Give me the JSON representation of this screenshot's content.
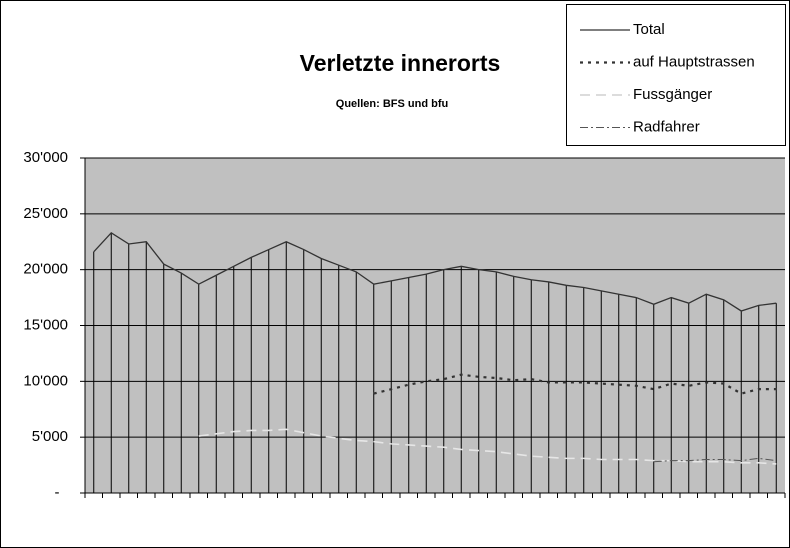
{
  "chart_data": {
    "type": "line",
    "title": "Verletzte innerorts",
    "subtitle": "Quellen: BFS und bfu",
    "categories": [
      null,
      null,
      null,
      null,
      null,
      null,
      null,
      null,
      null,
      null,
      null,
      null,
      null,
      null,
      null,
      null,
      null,
      null,
      null,
      null,
      null,
      null,
      null,
      null,
      null,
      null,
      null,
      null,
      null,
      null,
      null,
      null,
      null,
      null,
      null,
      null,
      null,
      null,
      null,
      null
    ],
    "series": [
      {
        "name": "Total",
        "color": "#333333",
        "style": "solid",
        "values": [
          21600,
          23300,
          22300,
          22500,
          20500,
          19700,
          18700,
          19500,
          20300,
          21100,
          21800,
          22500,
          21800,
          21000,
          20400,
          19800,
          18700,
          19000,
          19300,
          19600,
          20000,
          20300,
          20000,
          19800,
          19400,
          19100,
          18900,
          18600,
          18400,
          18100,
          17800,
          17500,
          16900,
          17500,
          17000,
          17800,
          17300,
          16300,
          16800,
          17000
        ]
      },
      {
        "name": "auf Hauptstrassen",
        "color": "#333333",
        "style": "dotted",
        "values": [
          null,
          null,
          null,
          null,
          null,
          null,
          null,
          null,
          null,
          null,
          null,
          null,
          null,
          null,
          null,
          null,
          8900,
          9300,
          9700,
          10000,
          10200,
          10600,
          10400,
          10300,
          10100,
          10200,
          9900,
          9900,
          9900,
          9800,
          9700,
          9600,
          9300,
          9800,
          9600,
          9900,
          9800,
          8900,
          9300,
          9300
        ]
      },
      {
        "name": "Fussgänger",
        "color": "#e6e6e6",
        "style": "dashed",
        "values": [
          null,
          null,
          null,
          null,
          null,
          null,
          5100,
          5300,
          5500,
          5600,
          5600,
          5700,
          5400,
          5100,
          4900,
          4700,
          4600,
          4400,
          4300,
          4200,
          4100,
          3900,
          3800,
          3700,
          3500,
          3300,
          3200,
          3100,
          3100,
          3000,
          3000,
          3000,
          2900,
          2900,
          2800,
          2800,
          2800,
          2700,
          2700,
          2600
        ]
      },
      {
        "name": "Radfahrer",
        "color": "#555555",
        "style": "dashdot",
        "values": [
          null,
          null,
          null,
          null,
          null,
          null,
          null,
          null,
          null,
          null,
          null,
          null,
          null,
          null,
          null,
          null,
          null,
          null,
          null,
          null,
          null,
          null,
          null,
          null,
          null,
          null,
          null,
          null,
          null,
          null,
          null,
          null,
          2800,
          2900,
          2900,
          3000,
          3000,
          2900,
          3100,
          2900
        ]
      }
    ],
    "ylim": [
      0,
      30000
    ],
    "yticks": [
      {
        "value": 0,
        "label": "-"
      },
      {
        "value": 5000,
        "label": "5'000"
      },
      {
        "value": 10000,
        "label": "10'000"
      },
      {
        "value": 15000,
        "label": "15'000"
      },
      {
        "value": 20000,
        "label": "20'000"
      },
      {
        "value": 25000,
        "label": "25'000"
      },
      {
        "value": 30000,
        "label": "30'000"
      }
    ],
    "grid": true,
    "drop_lines": true,
    "legend": "top-right"
  }
}
